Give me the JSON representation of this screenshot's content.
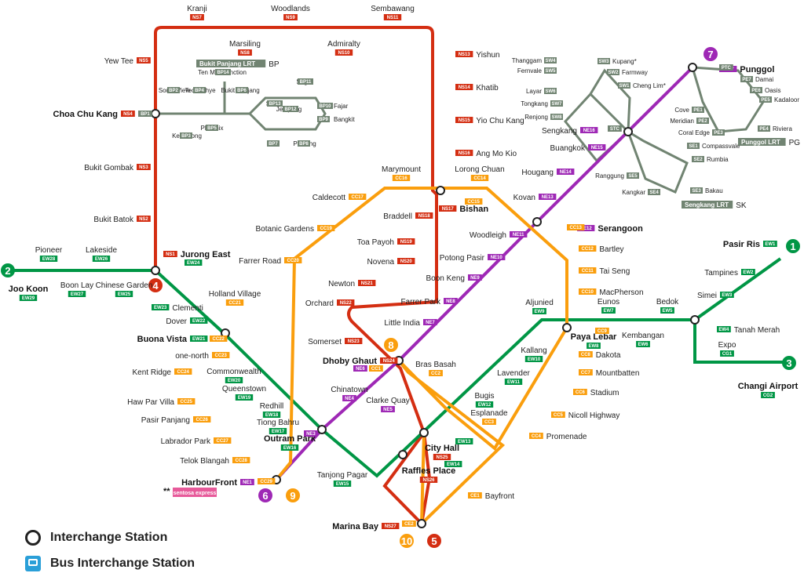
{
  "colors": {
    "ns": "#d42e12",
    "ew": "#009645",
    "ne": "#9e28b5",
    "cc": "#fa9e0d",
    "lrt": "#718472",
    "code_ns": "#d42e12",
    "code_ew": "#009645",
    "code_ne": "#9e28b5",
    "code_cc": "#fa9e0d",
    "bus": "#2a9fd8"
  },
  "legend": {
    "interchange": "Interchange Station",
    "bus": "Bus Interchange Station"
  },
  "line_numbers": [
    {
      "id": "2",
      "line": "ew"
    },
    {
      "id": "1",
      "line": "ew"
    },
    {
      "id": "3",
      "line": "ew"
    },
    {
      "id": "4",
      "line": "ns"
    },
    {
      "id": "5",
      "line": "ns"
    },
    {
      "id": "6",
      "line": "ne"
    },
    {
      "id": "7",
      "line": "ne"
    },
    {
      "id": "8",
      "line": "cc"
    },
    {
      "id": "9",
      "line": "cc"
    },
    {
      "id": "10",
      "line": "cc"
    }
  ],
  "stations": [
    {
      "name": "Kranji",
      "code": "NS7",
      "line": "ns"
    },
    {
      "name": "Woodlands",
      "code": "NS9",
      "line": "ns"
    },
    {
      "name": "Sembawang",
      "code": "NS11",
      "line": "ns"
    },
    {
      "name": "Marsiling",
      "code": "NS8",
      "line": "ns"
    },
    {
      "name": "Admiralty",
      "code": "NS10",
      "line": "ns"
    },
    {
      "name": "Yishun",
      "code": "NS13",
      "line": "ns"
    },
    {
      "name": "Khatib",
      "code": "NS14",
      "line": "ns"
    },
    {
      "name": "Yio Chu Kang",
      "code": "NS15",
      "line": "ns"
    },
    {
      "name": "Ang Mo Kio",
      "code": "NS16",
      "line": "ns"
    },
    {
      "name": "Yew Tee",
      "code": "NS5",
      "line": "ns"
    },
    {
      "name": "Choa Chu Kang",
      "code": "NS4",
      "line": "ns"
    },
    {
      "name": "Bukit Gombak",
      "code": "NS3",
      "line": "ns"
    },
    {
      "name": "Bukit Batok",
      "code": "NS2",
      "line": "ns"
    },
    {
      "name": "Jurong East",
      "code": "NS1",
      "line": "ns"
    },
    {
      "name": "Bishan",
      "code": "NS17",
      "line": "ns"
    },
    {
      "name": "Braddell",
      "code": "NS18",
      "line": "ns"
    },
    {
      "name": "Toa Payoh",
      "code": "NS19",
      "line": "ns"
    },
    {
      "name": "Novena",
      "code": "NS20",
      "line": "ns"
    },
    {
      "name": "Newton",
      "code": "NS21",
      "line": "ns"
    },
    {
      "name": "Orchard",
      "code": "NS22",
      "line": "ns"
    },
    {
      "name": "Somerset",
      "code": "NS23",
      "line": "ns"
    },
    {
      "name": "Dhoby Ghaut",
      "code": "NS24",
      "line": "ns"
    },
    {
      "name": "City Hall",
      "code": "NS25",
      "line": "ns"
    },
    {
      "name": "Raffles Place",
      "code": "NS26",
      "line": "ns"
    },
    {
      "name": "Marina Bay",
      "code": "NS27",
      "line": "ns"
    },
    {
      "name": "Pioneer",
      "code": "EW28",
      "line": "ew"
    },
    {
      "name": "Lakeside",
      "code": "EW26",
      "line": "ew"
    },
    {
      "name": "Joo Koon",
      "code": "EW29",
      "line": "ew"
    },
    {
      "name": "Boon Lay",
      "code": "EW27",
      "line": "ew"
    },
    {
      "name": "Chinese Garden",
      "code": "EW25",
      "line": "ew"
    },
    {
      "name": "Clementi",
      "code": "EW23",
      "line": "ew"
    },
    {
      "name": "Dover",
      "code": "EW22",
      "line": "ew"
    },
    {
      "name": "Buona Vista",
      "code": "EW21",
      "line": "ew"
    },
    {
      "name": "Commonwealth",
      "code": "EW20",
      "line": "ew"
    },
    {
      "name": "Queenstown",
      "code": "EW19",
      "line": "ew"
    },
    {
      "name": "Redhill",
      "code": "EW18",
      "line": "ew"
    },
    {
      "name": "Tiong Bahru",
      "code": "EW17",
      "line": "ew"
    },
    {
      "name": "Outram Park",
      "code": "EW16",
      "line": "ew"
    },
    {
      "name": "Tanjong Pagar",
      "code": "EW15",
      "line": "ew"
    },
    {
      "name": "Aljunied",
      "code": "EW9",
      "line": "ew"
    },
    {
      "name": "Kallang",
      "code": "EW10",
      "line": "ew"
    },
    {
      "name": "Lavender",
      "code": "EW11",
      "line": "ew"
    },
    {
      "name": "Bugis",
      "code": "EW12",
      "line": "ew"
    },
    {
      "name": "Eunos",
      "code": "EW7",
      "line": "ew"
    },
    {
      "name": "Bedok",
      "code": "EW5",
      "line": "ew"
    },
    {
      "name": "Kembangan",
      "code": "EW6",
      "line": "ew"
    },
    {
      "name": "Paya Lebar",
      "code": "EW8",
      "line": "ew"
    },
    {
      "name": "Tanah Merah",
      "code": "EW4",
      "line": "ew"
    },
    {
      "name": "Simei",
      "code": "EW3",
      "line": "ew"
    },
    {
      "name": "Tampines",
      "code": "EW2",
      "line": "ew"
    },
    {
      "name": "Pasir Ris",
      "code": "EW1",
      "line": "ew"
    },
    {
      "name": "Expo",
      "code": "CG1",
      "line": "ew"
    },
    {
      "name": "Changi Airport",
      "code": "CG2",
      "line": "ew"
    },
    {
      "name": "Punggol",
      "code": "NE17",
      "line": "ne"
    },
    {
      "name": "Sengkang",
      "code": "NE16",
      "line": "ne"
    },
    {
      "name": "Buangkok",
      "code": "NE15",
      "line": "ne"
    },
    {
      "name": "Hougang",
      "code": "NE14",
      "line": "ne"
    },
    {
      "name": "Kovan",
      "code": "NE13",
      "line": "ne"
    },
    {
      "name": "Serangoon",
      "code": "NE12",
      "line": "ne"
    },
    {
      "name": "Woodleigh",
      "code": "NE11",
      "line": "ne"
    },
    {
      "name": "Potong Pasir",
      "code": "NE10",
      "line": "ne"
    },
    {
      "name": "Boon Keng",
      "code": "NE9",
      "line": "ne"
    },
    {
      "name": "Farrer Park",
      "code": "NE8",
      "line": "ne"
    },
    {
      "name": "Little India",
      "code": "NE7",
      "line": "ne"
    },
    {
      "name": "Clarke Quay",
      "code": "NE5",
      "line": "ne"
    },
    {
      "name": "Chinatown",
      "code": "NE4",
      "line": "ne"
    },
    {
      "name": "HarbourFront",
      "code": "NE1",
      "line": "ne"
    },
    {
      "name": "Marymount",
      "code": "CC16",
      "line": "cc"
    },
    {
      "name": "Lorong Chuan",
      "code": "CC14",
      "line": "cc"
    },
    {
      "name": "Caldecott",
      "code": "CC17",
      "line": "cc"
    },
    {
      "name": "Botanic Gardens",
      "code": "CC19",
      "line": "cc"
    },
    {
      "name": "Farrer Road",
      "code": "CC20",
      "line": "cc"
    },
    {
      "name": "Holland Village",
      "code": "CC21",
      "line": "cc"
    },
    {
      "name": "one-north",
      "code": "CC23",
      "line": "cc"
    },
    {
      "name": "Kent Ridge",
      "code": "CC24",
      "line": "cc"
    },
    {
      "name": "Haw Par Villa",
      "code": "CC25",
      "line": "cc"
    },
    {
      "name": "Pasir Panjang",
      "code": "CC26",
      "line": "cc"
    },
    {
      "name": "Labrador Park",
      "code": "CC27",
      "line": "cc"
    },
    {
      "name": "Telok Blangah",
      "code": "CC28",
      "line": "cc"
    },
    {
      "name": "Bartley",
      "code": "CC12",
      "line": "cc"
    },
    {
      "name": "Tai Seng",
      "code": "CC11",
      "line": "cc"
    },
    {
      "name": "MacPherson",
      "code": "CC10",
      "line": "cc"
    },
    {
      "name": "Dakota",
      "code": "CC8",
      "line": "cc"
    },
    {
      "name": "Mountbatten",
      "code": "CC7",
      "line": "cc"
    },
    {
      "name": "Stadium",
      "code": "CC6",
      "line": "cc"
    },
    {
      "name": "Nicoll Highway",
      "code": "CC5",
      "line": "cc"
    },
    {
      "name": "Promenade",
      "code": "CC4",
      "line": "cc"
    },
    {
      "name": "Bras Basah",
      "code": "CC2",
      "line": "cc"
    },
    {
      "name": "Esplanade",
      "code": "CC3",
      "line": "cc"
    },
    {
      "name": "Bayfront",
      "code": "CE1",
      "line": "cc"
    }
  ],
  "extra_codes": {
    "jurong_east_ew": "EW24",
    "bishan_cc": "CC15",
    "serangoon_cc": "CC13",
    "paya_lebar_cc": "CC9",
    "buona_vista_cc": "CC22",
    "dhoby_ghaut_ne": "NE6",
    "dhoby_ghaut_cc": "CC1",
    "outram_ne": "NE3",
    "city_hall_ew": "EW13",
    "raffles_ew": "EW14",
    "marina_bay_cc": "CE2",
    "harbourfront_cc": "CC29",
    "sengkang_stc": "STC",
    "punggol_ptc": "PTC",
    "choa_bp1": "BP1"
  },
  "lrt": {
    "bp_title": "Bukit Panjang LRT",
    "bp_tag": "BP",
    "sk_title": "Sengkang LRT",
    "sk_tag": "SK",
    "pg_title": "Punggol LRT",
    "pg_tag": "PG",
    "bp_stations": [
      {
        "name": "South View",
        "code": "BP2"
      },
      {
        "name": "Teck Whye",
        "code": "BP4"
      },
      {
        "name": "Ten Mile Junction",
        "code": "BP14"
      },
      {
        "name": "Bukit Panjang",
        "code": "BP6"
      },
      {
        "name": "Keat Hong",
        "code": "BP3"
      },
      {
        "name": "Phoenix",
        "code": "BP5"
      },
      {
        "name": "Senja",
        "code": "BP13"
      },
      {
        "name": "Segar",
        "code": "BP11"
      },
      {
        "name": "Jelapang",
        "code": "BP12"
      },
      {
        "name": "Fajar",
        "code": "BP10"
      },
      {
        "name": "Bangkit",
        "code": "BP9"
      },
      {
        "name": "Petir",
        "code": "BP7"
      },
      {
        "name": "Pending",
        "code": "BP8"
      }
    ],
    "sk_stations": [
      {
        "name": "Thanggam",
        "code": "SW4"
      },
      {
        "name": "Fernvale",
        "code": "SW5"
      },
      {
        "name": "Layar",
        "code": "SW6"
      },
      {
        "name": "Tongkang",
        "code": "SW7"
      },
      {
        "name": "Renjong",
        "code": "SW8"
      },
      {
        "name": "Kupang*",
        "code": "SW3"
      },
      {
        "name": "Farmway",
        "code": "SW2"
      },
      {
        "name": "Cheng Lim*",
        "code": "SW1"
      },
      {
        "name": "Compassvale",
        "code": "SE1"
      },
      {
        "name": "Rumbia",
        "code": "SE2"
      },
      {
        "name": "Bakau",
        "code": "SE3"
      },
      {
        "name": "Kangkar",
        "code": "SE4"
      },
      {
        "name": "Ranggung",
        "code": "SE5"
      }
    ],
    "pg_stations": [
      {
        "name": "Damai",
        "code": "PE7"
      },
      {
        "name": "Oasis",
        "code": "PE6"
      },
      {
        "name": "Kadaloor",
        "code": "PE5"
      },
      {
        "name": "Riviera",
        "code": "PE4"
      },
      {
        "name": "Coral Edge",
        "code": "PE3"
      },
      {
        "name": "Meridian",
        "code": "PE2"
      },
      {
        "name": "Cove",
        "code": "PE1"
      }
    ]
  },
  "sentosa": {
    "marker": "**",
    "text": "sentosa express"
  }
}
